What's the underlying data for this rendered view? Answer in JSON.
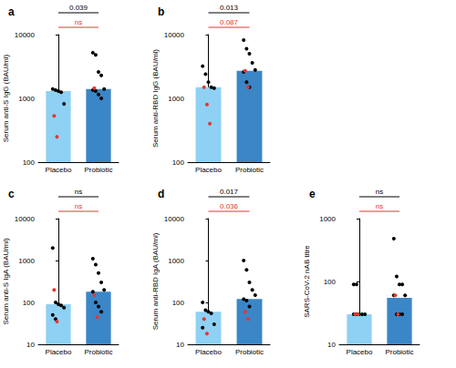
{
  "chart_data": [
    {
      "title": "a",
      "type": "bar",
      "categories": [
        "Placebo",
        "Probiotic"
      ],
      "ylabel": "Serum anti-S IgG (BAU/ml)",
      "log": "y",
      "ylim": [
        100,
        10000
      ],
      "yticks": [
        100,
        1000,
        10000
      ],
      "series": [
        {
          "type": "bar",
          "values": [
            1300,
            1400
          ],
          "colors": [
            "#8ed1f4",
            "#3b86c6"
          ]
        },
        {
          "type": "scatter",
          "color": "#000000",
          "values": [
            [
              1400,
              1350,
              1300,
              1250,
              820
            ],
            [
              5200,
              4800,
              2600,
              2300,
              1400,
              1350,
              1300,
              1150,
              1000
            ]
          ]
        },
        {
          "type": "scatter",
          "color": "#e8352e",
          "values": [
            [
              530,
              250
            ],
            [
              1450
            ]
          ]
        }
      ],
      "annotations": [
        {
          "text": "0.039",
          "color": "#000000"
        },
        {
          "text": "ns",
          "color": "#e8352e"
        }
      ]
    },
    {
      "title": "b",
      "type": "bar",
      "categories": [
        "Placebo",
        "Probiotic"
      ],
      "ylabel": "Serum anti-RBD IgG (BAU/ml)",
      "log": "y",
      "ylim": [
        100,
        10000
      ],
      "yticks": [
        100,
        1000,
        10000
      ],
      "series": [
        {
          "type": "bar",
          "values": [
            1500,
            2700
          ],
          "colors": [
            "#8ed1f4",
            "#3b86c6"
          ]
        },
        {
          "type": "scatter",
          "color": "#000000",
          "values": [
            [
              3200,
              2400,
              1800,
              1500,
              1450
            ],
            [
              8200,
              6000,
              5000,
              3600,
              2800,
              2600,
              1800,
              1500
            ]
          ]
        },
        {
          "type": "scatter",
          "color": "#e8352e",
          "values": [
            [
              1500,
              800,
              400
            ],
            [
              2700,
              1500
            ]
          ]
        }
      ],
      "annotations": [
        {
          "text": "0.013",
          "color": "#000000"
        },
        {
          "text": "0.087",
          "color": "#e8352e"
        }
      ]
    },
    {
      "title": "c",
      "type": "bar",
      "categories": [
        "Placebo",
        "Probiotic"
      ],
      "ylabel": "Serum anti-S IgA (BAU/ml)",
      "log": "y",
      "ylim": [
        10,
        10000
      ],
      "yticks": [
        10,
        100,
        1000,
        10000
      ],
      "series": [
        {
          "type": "bar",
          "values": [
            90,
            180
          ],
          "colors": [
            "#8ed1f4",
            "#3b86c6"
          ]
        },
        {
          "type": "scatter",
          "color": "#000000",
          "values": [
            [
              2000,
              100,
              90,
              85,
              75,
              50,
              40
            ],
            [
              1100,
              800,
              500,
              300,
              200,
              180,
              100,
              80,
              60
            ]
          ]
        },
        {
          "type": "scatter",
          "color": "#e8352e",
          "values": [
            [
              200,
              35
            ],
            [
              150,
              45
            ]
          ]
        }
      ],
      "annotations": [
        {
          "text": "ns",
          "color": "#000000"
        },
        {
          "text": "ns",
          "color": "#e8352e"
        }
      ]
    },
    {
      "title": "d",
      "type": "bar",
      "categories": [
        "Placebo",
        "Probiotic"
      ],
      "ylabel": "Serum anti-RBD IgA (BAU/ml)",
      "log": "y",
      "ylim": [
        10,
        10000
      ],
      "yticks": [
        10,
        100,
        1000,
        10000
      ],
      "series": [
        {
          "type": "bar",
          "values": [
            60,
            120
          ],
          "colors": [
            "#8ed1f4",
            "#3b86c6"
          ]
        },
        {
          "type": "scatter",
          "color": "#000000",
          "values": [
            [
              100,
              65,
              60,
              55,
              30,
              25
            ],
            [
              1000,
              600,
              300,
              200,
              150,
              120,
              110,
              80
            ]
          ]
        },
        {
          "type": "scatter",
          "color": "#e8352e",
          "values": [
            [
              40,
              18
            ],
            [
              60,
              40
            ]
          ]
        }
      ],
      "annotations": [
        {
          "text": "0.017",
          "color": "#000000"
        },
        {
          "text": "0.036",
          "color": "#e8352e"
        }
      ]
    },
    {
      "title": "e",
      "type": "bar",
      "categories": [
        "Placebo",
        "Probiotic"
      ],
      "ylabel": "SARS-CoV-2 nAB titre",
      "log": "y",
      "ylim": [
        10,
        1000
      ],
      "yticks": [
        10,
        100,
        1000
      ],
      "series": [
        {
          "type": "bar",
          "values": [
            30,
            55
          ],
          "colors": [
            "#8ed1f4",
            "#3b86c6"
          ]
        },
        {
          "type": "scatter",
          "color": "#000000",
          "values": [
            [
              90,
              90,
              30,
              30,
              30,
              30,
              30
            ],
            [
              480,
              120,
              90,
              90,
              60,
              60,
              30,
              30,
              30
            ]
          ]
        },
        {
          "type": "scatter",
          "color": "#e8352e",
          "values": [
            [
              30,
              30
            ],
            [
              60,
              30
            ]
          ]
        }
      ],
      "annotations": [
        {
          "text": "ns",
          "color": "#000000"
        },
        {
          "text": "ns",
          "color": "#e8352e"
        }
      ]
    }
  ]
}
